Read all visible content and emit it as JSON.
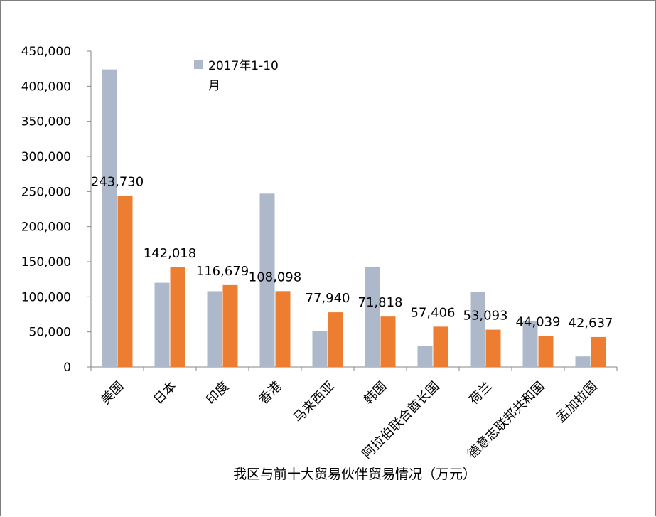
{
  "chart_data": {
    "type": "bar",
    "title": "我区与前十大贸易伙伴贸易情况（万元）",
    "categories": [
      "美国",
      "日本",
      "印度",
      "香港",
      "马来西亚",
      "韩国",
      "阿拉伯联合酋长国",
      "荷兰",
      "德意志联邦共和国",
      "孟加拉国"
    ],
    "series": [
      {
        "name": "2017年1-10月",
        "color": "#adb9ca",
        "values": [
          424000,
          120000,
          108000,
          247000,
          51000,
          142000,
          30000,
          107000,
          65000,
          15000
        ]
      },
      {
        "color": "#ed7d31",
        "values": [
          243730,
          142018,
          116679,
          108098,
          77940,
          71818,
          57406,
          53093,
          44039,
          42637
        ],
        "labels": [
          "243,730",
          "142,018",
          "116,679",
          "108,098",
          "77,940",
          "71,818",
          "57,406",
          "53,093",
          "44,039",
          "42,637"
        ]
      }
    ],
    "ylim": [
      0,
      450000
    ],
    "yticks": [
      "0",
      "50,000",
      "100,000",
      "150,000",
      "200,000",
      "250,000",
      "300,000",
      "350,000",
      "400,000",
      "450,000"
    ],
    "legend": {
      "position": "top-center",
      "text_line1": "2017年1-10",
      "text_line2": "月"
    },
    "grid": false
  }
}
